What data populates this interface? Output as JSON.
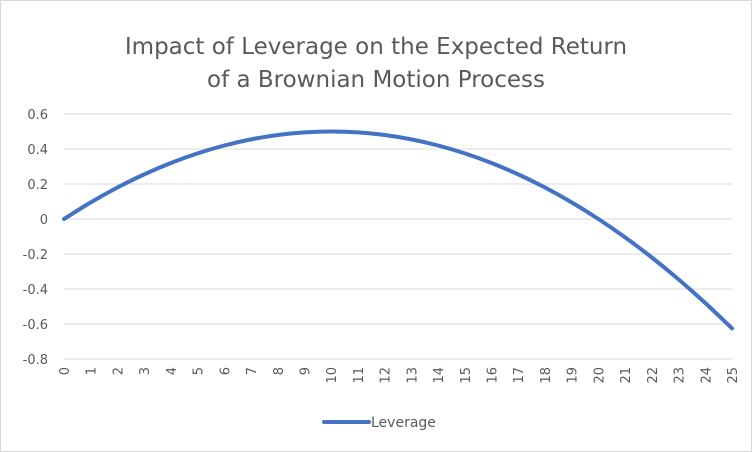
{
  "chart_data": {
    "type": "line",
    "title_line1": "Impact of Leverage on the Expected Return",
    "title_line2": "of a Brownian Motion Process",
    "xlabel": "",
    "ylabel": "",
    "x": [
      0,
      1,
      2,
      3,
      4,
      5,
      6,
      7,
      8,
      9,
      10,
      11,
      12,
      13,
      14,
      15,
      16,
      17,
      18,
      19,
      20,
      21,
      22,
      23,
      24,
      25
    ],
    "series": [
      {
        "name": "Leverage",
        "color": "#4472c4",
        "values": [
          0,
          0.095,
          0.18,
          0.255,
          0.32,
          0.375,
          0.42,
          0.455,
          0.48,
          0.495,
          0.5,
          0.495,
          0.48,
          0.455,
          0.42,
          0.375,
          0.32,
          0.255,
          0.18,
          0.095,
          0,
          -0.105,
          -0.22,
          -0.345,
          -0.48,
          -0.625
        ]
      }
    ],
    "ylim": [
      -0.8,
      0.6
    ],
    "yticks": [
      0.6,
      0.4,
      0.2,
      0,
      -0.2,
      -0.4,
      -0.6,
      -0.8
    ],
    "ytick_labels": [
      "0.6",
      "0.4",
      "0.2",
      "0",
      "-0.2",
      "-0.4",
      "-0.6",
      "-0.8"
    ],
    "xlim": [
      0,
      25
    ],
    "xtick_labels": [
      "0",
      "1",
      "2",
      "3",
      "4",
      "5",
      "6",
      "7",
      "8",
      "9",
      "10",
      "11",
      "12",
      "13",
      "14",
      "15",
      "16",
      "17",
      "18",
      "19",
      "20",
      "21",
      "22",
      "23",
      "24",
      "25"
    ],
    "grid": true,
    "gridColor": "#d9d9d9",
    "legend_position": "bottom"
  }
}
